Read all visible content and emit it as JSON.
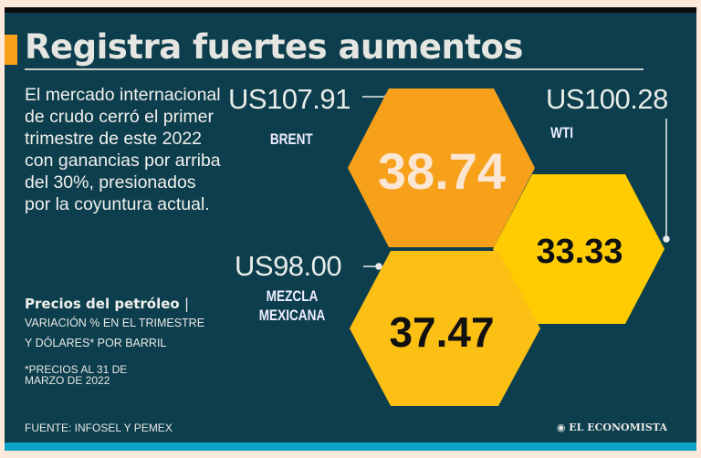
{
  "title": "Registra fuertes aumentos",
  "intro": "El mercado internacional de crudo cerró el primer trimestre de este 2022 con ganancias por arriba del 30%, presionados por la coyuntura actual.",
  "subtitle": "Precios del petróleo",
  "subtitle_sep": "|",
  "subtitle_desc_1": "VARIACIÓN % EN EL TRIMESTRE",
  "subtitle_desc_2": "Y DÓLARES* POR BARRIL",
  "note_1": "*PRECIOS AL 31 DE",
  "note_2": "MARZO DE 2022",
  "source": "FUENTE: INFOSEL Y PEMEX",
  "logo": "EL ECONOMISTA",
  "chart_data": {
    "type": "hexagon-infographic",
    "title": "Precios del petróleo",
    "series": [
      {
        "name": "BRENT",
        "price": "US107.91",
        "variation_pct": 38.74,
        "label": "38.74",
        "color": "#f7a11b"
      },
      {
        "name": "WTI",
        "price": "US100.28",
        "variation_pct": 33.33,
        "label": "33.33",
        "color": "#fecc00"
      },
      {
        "name": "MEZCLA MEXICANA",
        "name_1": "MEZCLA",
        "name_2": "MEXICANA",
        "price": "US98.00",
        "variation_pct": 37.47,
        "label": "37.47",
        "color": "#fcbf14"
      }
    ]
  }
}
